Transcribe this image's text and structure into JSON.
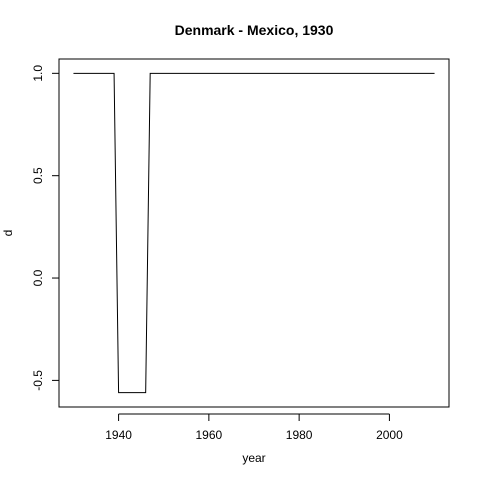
{
  "chart_data": {
    "type": "line",
    "title": "Denmark - Mexico, 1930",
    "xlabel": "year",
    "ylabel": "d",
    "xlim": [
      1926.8,
      2013.2
    ],
    "ylim": [
      -0.63,
      1.07
    ],
    "x_ticks": [
      1940,
      1960,
      1980,
      2000
    ],
    "y_ticks": [
      -0.5,
      0.0,
      0.5,
      1.0
    ],
    "x_tick_labels": [
      "1940",
      "1960",
      "1980",
      "2000"
    ],
    "y_tick_labels": [
      "-0.5",
      "0.0",
      "0.5",
      "1.0"
    ],
    "grid": false,
    "legend": "none",
    "line_color": "#000000",
    "series": [
      {
        "x": [
          1930,
          1939,
          1940,
          1946,
          1947,
          2010
        ],
        "y": [
          1.0,
          1.0,
          -0.56,
          -0.56,
          1.0,
          1.0
        ]
      }
    ]
  }
}
